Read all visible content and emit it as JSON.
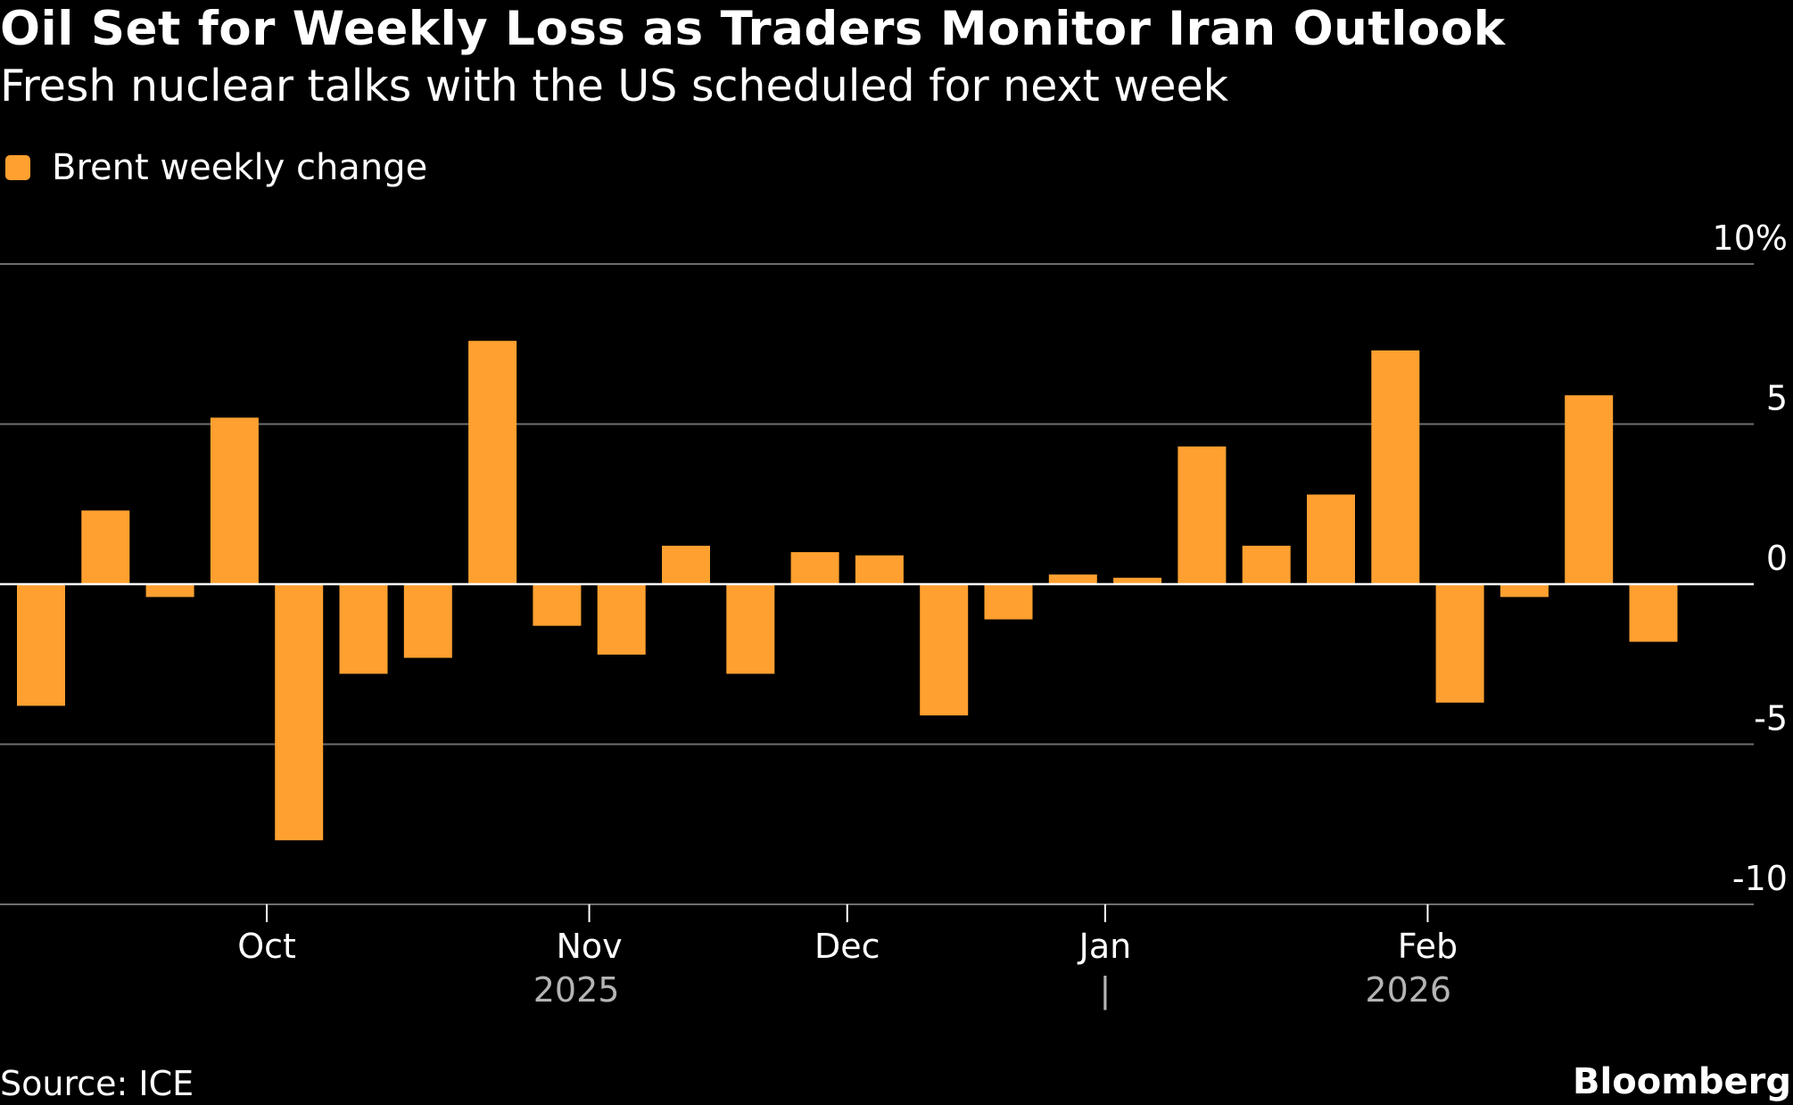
{
  "title": "Oil Set for Weekly Loss as Traders Monitor Iran Outlook",
  "subtitle": "Fresh nuclear talks with the US scheduled for next week",
  "legend": {
    "label": "Brent weekly change",
    "color": "#ffa030"
  },
  "source": "Source: ICE",
  "brand": "Bloomberg",
  "colors": {
    "background": "#000000",
    "bar": "#ffa030",
    "gridline": "#6e6e6e",
    "zero_line": "#ffffff",
    "text": "#ffffff",
    "muted_text": "#b4b4b4"
  },
  "chart_data": {
    "type": "bar",
    "title": "Oil Set for Weekly Loss as Traders Monitor Iran Outlook",
    "subtitle": "Fresh nuclear talks with the US scheduled for next week",
    "xlabel": "",
    "ylabel": "",
    "ylim": [
      -10,
      10
    ],
    "y_ticks": [
      {
        "value": 10,
        "label": "10%"
      },
      {
        "value": 5,
        "label": "5"
      },
      {
        "value": 0,
        "label": "0"
      },
      {
        "value": -5,
        "label": "-5"
      },
      {
        "value": -10,
        "label": "-10"
      }
    ],
    "x_ticks": [
      {
        "week_index": 3.5,
        "label": "Oct"
      },
      {
        "week_index": 8.5,
        "label": "Nov"
      },
      {
        "week_index": 12.5,
        "label": "Dec"
      },
      {
        "week_index": 16.5,
        "label": "Jan"
      },
      {
        "week_index": 21.5,
        "label": "Feb"
      }
    ],
    "year_labels": [
      {
        "week_index": 8.3,
        "label": "2025"
      },
      {
        "week_index": 21.2,
        "label": "2026"
      }
    ],
    "year_divider_week_index": 16.5,
    "year_divider_label": "|",
    "grid": true,
    "legend_position": "top-left",
    "series": [
      {
        "name": "Brent weekly change",
        "values": [
          -3.8,
          2.3,
          -0.4,
          5.2,
          -8.0,
          -2.8,
          -2.3,
          7.6,
          -1.3,
          -2.2,
          1.2,
          -2.8,
          1.0,
          0.9,
          -4.1,
          -1.1,
          0.3,
          0.2,
          4.3,
          1.2,
          2.8,
          7.3,
          -3.7,
          -0.4,
          5.9,
          -1.8
        ]
      }
    ]
  }
}
